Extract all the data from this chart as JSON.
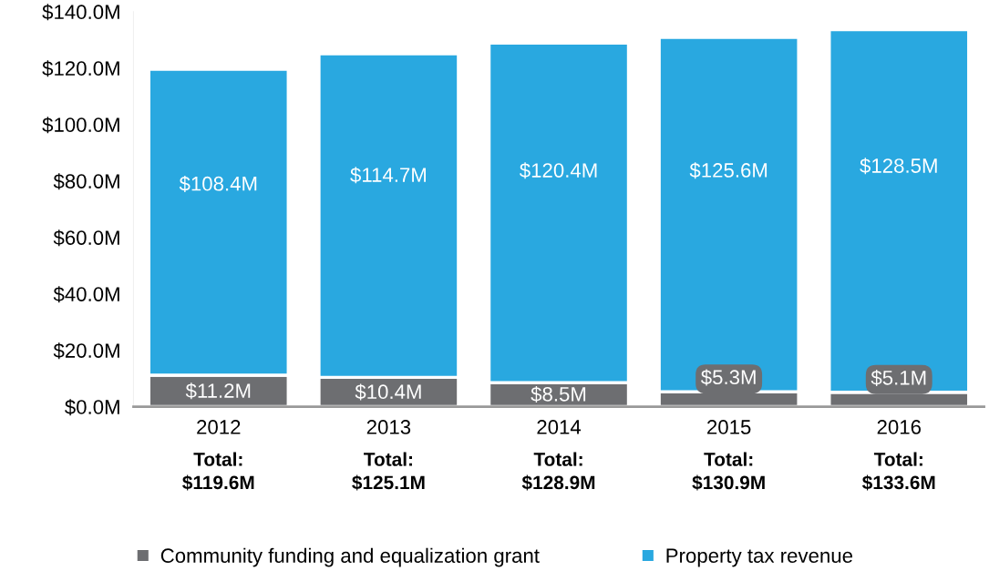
{
  "chart_data": {
    "type": "bar",
    "stacked": true,
    "categories": [
      "2012",
      "2013",
      "2014",
      "2015",
      "2016"
    ],
    "series": [
      {
        "name": "Community funding and equalization grant",
        "color": "#6d6e71",
        "values": [
          11.2,
          10.4,
          8.5,
          5.3,
          5.1
        ],
        "value_labels": [
          "$11.2M",
          "$10.4M",
          "$8.5M",
          "$5.3M",
          "$5.1M"
        ]
      },
      {
        "name": "Property tax revenue",
        "color": "#29a8e0",
        "values": [
          108.4,
          114.7,
          120.4,
          125.6,
          128.5
        ],
        "value_labels": [
          "$108.4M",
          "$114.7M",
          "$120.4M",
          "$125.6M",
          "$128.5M"
        ]
      }
    ],
    "totals": [
      "Total:\n$119.6M",
      "Total:\n$125.1M",
      "Total:\n$128.9M",
      "Total:\n$130.9M",
      "Total:\n$133.6M"
    ],
    "ylim": [
      0,
      140
    ],
    "yticks": [
      {
        "value": 0,
        "label": "$0.0M"
      },
      {
        "value": 20,
        "label": "$20.0M"
      },
      {
        "value": 40,
        "label": "$40.0M"
      },
      {
        "value": 60,
        "label": "$60.0M"
      },
      {
        "value": 80,
        "label": "$80.0M"
      },
      {
        "value": 100,
        "label": "$100.0M"
      },
      {
        "value": 120,
        "label": "$120.0M"
      },
      {
        "value": 140,
        "label": "$140.0M"
      }
    ],
    "grid": false,
    "legend": "bottom"
  }
}
